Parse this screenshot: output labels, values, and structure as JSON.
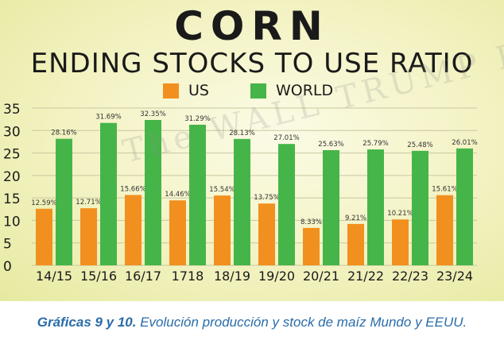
{
  "chart_data": {
    "type": "bar",
    "title": "CORN",
    "subtitle": "ENDING STOCKS TO USE RATIO",
    "categories": [
      "14/15",
      "15/16",
      "16/17",
      "1718",
      "18/19",
      "19/20",
      "20/21",
      "21/22",
      "22/23",
      "23/24"
    ],
    "series": [
      {
        "name": "US",
        "color": "#f2901f",
        "values": [
          12.59,
          12.71,
          15.66,
          14.46,
          15.54,
          13.75,
          8.33,
          9.21,
          10.21,
          15.61
        ],
        "labels": [
          "12.59%",
          "12.71%",
          "15.66%",
          "14.46%",
          "15.54%",
          "13.75%",
          "8.33%",
          "9.21%",
          "10.21%",
          "15.61%"
        ]
      },
      {
        "name": "WORLD",
        "color": "#46b549",
        "values": [
          28.16,
          31.69,
          32.35,
          31.29,
          28.13,
          27.01,
          25.63,
          25.79,
          25.48,
          26.01
        ],
        "labels": [
          "28.16%",
          "31.69%",
          "32.35%",
          "31.29%",
          "28.13%",
          "27.01%",
          "25.63%",
          "25.79%",
          "25.48%",
          "26.01%"
        ]
      }
    ],
    "yticks": [
      0,
      5,
      10,
      15,
      20,
      25,
      30,
      35
    ],
    "ylim": [
      0,
      35
    ],
    "grid": true,
    "legend": "top"
  },
  "watermark": "The WALL TRUMP Report",
  "caption": {
    "bold": "Gráficas 9 y 10.",
    "text": " Evolución producción y stock de maíz Mundo y EEUU."
  }
}
